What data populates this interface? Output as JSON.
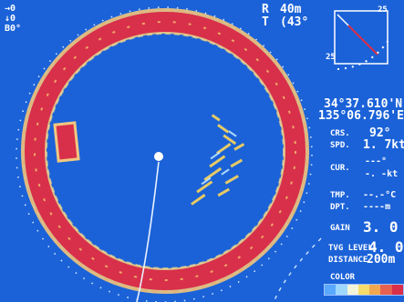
{
  "top_left": {
    "line1": "→0",
    "line2": "↓0",
    "line3": "B0°"
  },
  "range": {
    "r_label": "R",
    "r_value": "40m",
    "t_label": "T",
    "t_value": "(43°"
  },
  "compass": {
    "label_top": "25",
    "label_left": "25"
  },
  "position": {
    "lat": "34°37.610'N",
    "lon": "135°06.796'E"
  },
  "readouts": {
    "crs_label": "CRS.",
    "crs_value": "92°",
    "spd_label": "SPD.",
    "spd_value": "1. 7kt",
    "cur_label": "CUR.",
    "cur_value1": "---°",
    "cur_value2": "-. -kt",
    "tmp_label": "TMP.",
    "tmp_value": "--.-°C",
    "dpt_label": "DPT.",
    "dpt_value": "----m",
    "gain_label": "GAIN",
    "gain_value": "3. 0",
    "tvg_label": "TVG LEVEL",
    "tvg_value": "4. 0",
    "distance_label": "DISTANCE",
    "distance_value": "200m",
    "color_label": "COLOR"
  },
  "colors": {
    "background": "#1b62d8",
    "ring_red": "#d8304a",
    "echo_yellow": "#f2d060",
    "echo_light": "#bfe6ff"
  },
  "colorbar_levels": [
    "#5aa8ff",
    "#9fd8ff",
    "#f4f4d8",
    "#f6dc6a",
    "#f2a850",
    "#e86050",
    "#d8304a"
  ]
}
